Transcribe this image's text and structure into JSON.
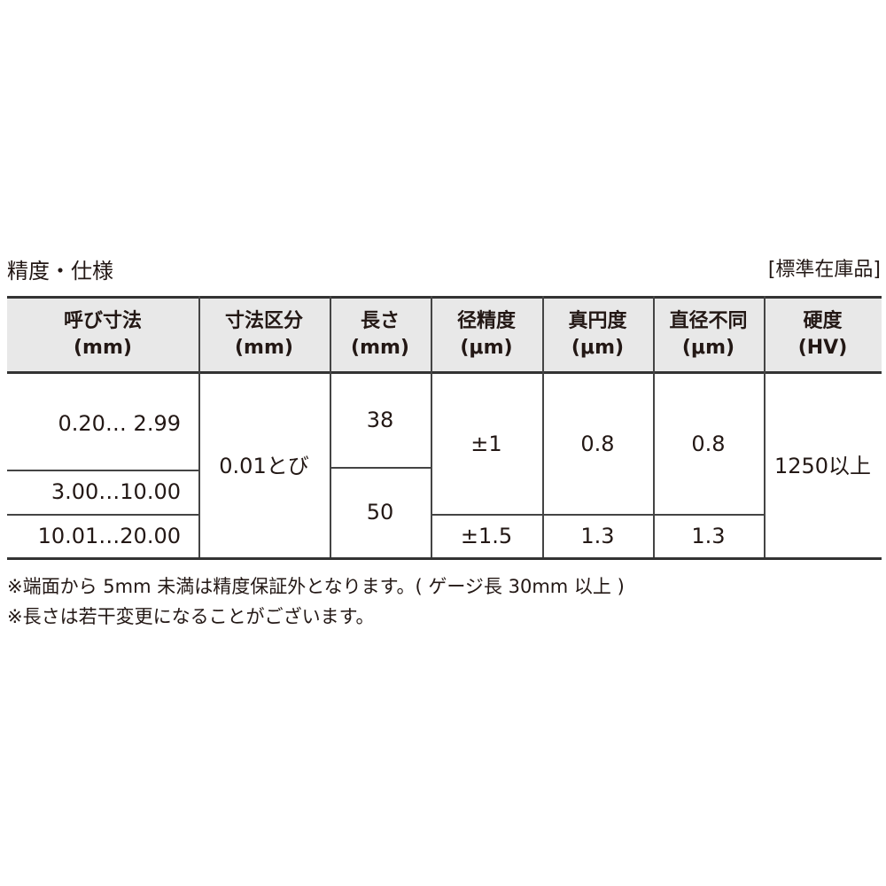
{
  "title": "精度・仕様",
  "stock_label": "[標準在庫品]",
  "table": {
    "headers": [
      {
        "line1": "呼び寸法",
        "line2": "(mm)"
      },
      {
        "line1": "寸法区分",
        "line2": "(mm)"
      },
      {
        "line1": "長さ",
        "line2": "(mm)"
      },
      {
        "line1": "径精度",
        "line2": "(μm)"
      },
      {
        "line1": "真円度",
        "line2": "(μm)"
      },
      {
        "line1": "直径不同",
        "line2": "(μm)"
      },
      {
        "line1": "硬度",
        "line2": "(HV)"
      }
    ],
    "nominal": [
      "0.20…  2.99",
      "3.00…10.00",
      "10.01…20.00"
    ],
    "increment": "0.01とび",
    "length": [
      "38",
      "50"
    ],
    "diameter_accuracy": [
      "±1",
      "±1.5"
    ],
    "roundness": [
      "0.8",
      "1.3"
    ],
    "diameter_variation": [
      "0.8",
      "1.3"
    ],
    "hardness": "1250以上"
  },
  "notes": [
    "※端面から 5mm 未満は精度保証外となります。( ゲージ長 30mm 以上 )",
    "※長さは若干変更になることがございます。"
  ]
}
